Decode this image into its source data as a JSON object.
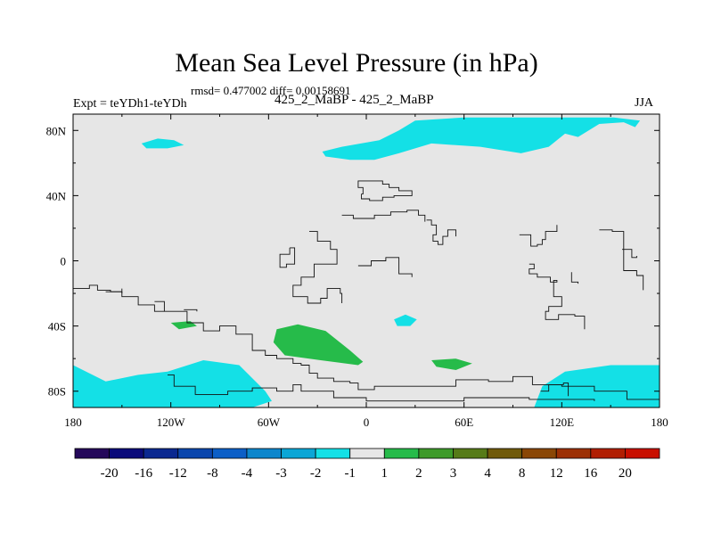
{
  "chart_data": {
    "type": "heatmap",
    "title": "Mean Sea Level Pressure (in hPa)",
    "stats_text": "rmsd= 0.477002 diff= 0.00158691",
    "left_label": "Expt = teYDh1-teYDh",
    "center_label": "425_2_MaBP - 425_2_MaBP",
    "right_label": "JJA",
    "xlim": [
      -180,
      180
    ],
    "ylim": [
      -90,
      90
    ],
    "x_ticks": [
      {
        "value": -180,
        "label": "180"
      },
      {
        "value": -120,
        "label": "120W"
      },
      {
        "value": -60,
        "label": "60W"
      },
      {
        "value": 0,
        "label": "0"
      },
      {
        "value": 60,
        "label": "60E"
      },
      {
        "value": 120,
        "label": "120E"
      },
      {
        "value": 180,
        "label": "180"
      }
    ],
    "y_ticks": [
      {
        "value": 80,
        "label": "80N"
      },
      {
        "value": 40,
        "label": "40N"
      },
      {
        "value": 0,
        "label": "0"
      },
      {
        "value": -40,
        "label": "40S"
      },
      {
        "value": -80,
        "label": "80S"
      }
    ],
    "background_color": "#e6e6e6",
    "colorbar": {
      "colors": [
        "#24085a",
        "#0a0a7a",
        "#0a2890",
        "#0b46ad",
        "#0c5fc7",
        "#0d86cc",
        "#0ca6d6",
        "#14e0e6",
        "#e6e6e6",
        "#26bb4a",
        "#3e9a2a",
        "#567b18",
        "#705a0a",
        "#8a4706",
        "#9c3004",
        "#b01e02",
        "#c80f00"
      ],
      "labels": [
        "-20",
        "-16",
        "-12",
        "-8",
        "-4",
        "-3",
        "-2",
        "-1",
        "1",
        "2",
        "3",
        "4",
        "8",
        "12",
        "16",
        "20"
      ]
    },
    "regions": [
      {
        "name": "arctic-negative-anomaly",
        "level": "-2 to -1",
        "color": "#14e0e6",
        "lonlat": [
          [
            -25,
            64
          ],
          [
            -10,
            62
          ],
          [
            5,
            62
          ],
          [
            20,
            66
          ],
          [
            40,
            72
          ],
          [
            70,
            70
          ],
          [
            95,
            66
          ],
          [
            112,
            70
          ],
          [
            122,
            78
          ],
          [
            130,
            76
          ],
          [
            143,
            84
          ],
          [
            158,
            85
          ],
          [
            165,
            82
          ],
          [
            168,
            86
          ],
          [
            152,
            88
          ],
          [
            112,
            88
          ],
          [
            60,
            88
          ],
          [
            30,
            86
          ],
          [
            20,
            80
          ],
          [
            8,
            74
          ],
          [
            -15,
            70
          ],
          [
            -27,
            67
          ]
        ]
      },
      {
        "name": "north-pacific-negative-anomaly",
        "level": "-2 to -1",
        "color": "#14e0e6",
        "lonlat": [
          [
            -138,
            72
          ],
          [
            -128,
            75
          ],
          [
            -118,
            74
          ],
          [
            -112,
            71
          ],
          [
            -122,
            69
          ],
          [
            -135,
            69
          ]
        ]
      },
      {
        "name": "antarctic-negative-anomaly-west",
        "level": "-2 to -1",
        "color": "#14e0e6",
        "lonlat": [
          [
            -180,
            -64
          ],
          [
            -160,
            -74
          ],
          [
            -140,
            -70
          ],
          [
            -122,
            -68
          ],
          [
            -100,
            -61
          ],
          [
            -78,
            -64
          ],
          [
            -68,
            -74
          ],
          [
            -62,
            -80
          ],
          [
            -58,
            -86
          ],
          [
            -70,
            -90
          ],
          [
            -180,
            -90
          ]
        ]
      },
      {
        "name": "antarctic-negative-anomaly-east",
        "level": "-2 to -1",
        "color": "#14e0e6",
        "lonlat": [
          [
            103,
            -90
          ],
          [
            108,
            -77
          ],
          [
            122,
            -68
          ],
          [
            150,
            -64
          ],
          [
            180,
            -64
          ],
          [
            180,
            -90
          ]
        ]
      },
      {
        "name": "south-atlantic-negative-anomaly",
        "level": "-2 to -1",
        "color": "#14e0e6",
        "lonlat": [
          [
            17,
            -36
          ],
          [
            24,
            -33
          ],
          [
            31,
            -36
          ],
          [
            27,
            -40
          ],
          [
            19,
            -40
          ]
        ]
      },
      {
        "name": "south-atlantic-positive-anomaly",
        "level": "1 to 2",
        "color": "#26bb4a",
        "lonlat": [
          [
            -55,
            -42
          ],
          [
            -42,
            -39
          ],
          [
            -25,
            -43
          ],
          [
            -10,
            -55
          ],
          [
            -2,
            -62
          ],
          [
            -5,
            -64
          ],
          [
            -28,
            -61
          ],
          [
            -50,
            -58
          ],
          [
            -57,
            -50
          ]
        ]
      },
      {
        "name": "south-pacific-positive-anomaly",
        "level": "1 to 2",
        "color": "#26bb4a",
        "lonlat": [
          [
            -120,
            -38
          ],
          [
            -108,
            -37
          ],
          [
            -104,
            -40
          ],
          [
            -115,
            -42
          ]
        ]
      },
      {
        "name": "indian-ocean-positive-anomaly",
        "level": "1 to 2",
        "color": "#26bb4a",
        "lonlat": [
          [
            40,
            -61
          ],
          [
            55,
            -60
          ],
          [
            65,
            -63
          ],
          [
            55,
            -67
          ],
          [
            43,
            -65
          ]
        ]
      }
    ],
    "coastlines": [
      [
        [
          -180,
          -17
        ],
        [
          -170,
          -15
        ],
        [
          -165,
          -18
        ],
        [
          -157,
          -19
        ],
        [
          -150,
          -22
        ],
        [
          -140,
          -27
        ],
        [
          -130,
          -31
        ],
        [
          -110,
          -38
        ],
        [
          -100,
          -43
        ],
        [
          -90,
          -40
        ],
        [
          -80,
          -45
        ],
        [
          -70,
          -55
        ],
        [
          -62,
          -58
        ],
        [
          -55,
          -60
        ],
        [
          -45,
          -63
        ],
        [
          -40,
          -64
        ],
        [
          -35,
          -69
        ],
        [
          -30,
          -72
        ],
        [
          -20,
          -74
        ],
        [
          -10,
          -75
        ],
        [
          -5,
          -79
        ],
        [
          5,
          -77
        ],
        [
          20,
          -77
        ],
        [
          40,
          -77
        ],
        [
          55,
          -73
        ],
        [
          75,
          -74
        ],
        [
          90,
          -71
        ],
        [
          102,
          -76
        ],
        [
          120,
          -77
        ],
        [
          140,
          -80
        ],
        [
          160,
          -85
        ],
        [
          180,
          -88
        ]
      ],
      [
        [
          -122,
          -70
        ],
        [
          -118,
          -77
        ],
        [
          -105,
          -82
        ],
        [
          -85,
          -80
        ],
        [
          -70,
          -78
        ],
        [
          -55,
          -80
        ],
        [
          -45,
          -76
        ],
        [
          -40,
          -80
        ],
        [
          -20,
          -84
        ],
        [
          0,
          -86
        ],
        [
          30,
          -86
        ],
        [
          60,
          -84
        ],
        [
          100,
          -85
        ],
        [
          140,
          -86
        ]
      ],
      [
        [
          -160,
          -19
        ],
        [
          -150,
          -17
        ],
        [
          -150,
          -20
        ]
      ],
      [
        [
          -130,
          -25
        ],
        [
          -124,
          -28
        ],
        [
          -124,
          -31
        ]
      ],
      [
        [
          -112,
          -30
        ],
        [
          -104,
          -31
        ]
      ],
      [
        [
          -3,
          41
        ],
        [
          -2,
          45
        ],
        [
          -5,
          49
        ],
        [
          10,
          47
        ],
        [
          14,
          45
        ],
        [
          20,
          43
        ],
        [
          28,
          43
        ],
        [
          28,
          40
        ],
        [
          17,
          39
        ],
        [
          10,
          37
        ],
        [
          2,
          38
        ],
        [
          -3,
          41
        ]
      ],
      [
        [
          -15,
          28
        ],
        [
          -8,
          26
        ],
        [
          5,
          28
        ],
        [
          15,
          30
        ],
        [
          25,
          31
        ],
        [
          32,
          28
        ],
        [
          36,
          24
        ]
      ],
      [
        [
          -47,
          8
        ],
        [
          -44,
          4
        ],
        [
          -44,
          -2
        ],
        [
          -49,
          -4
        ],
        [
          -53,
          -2
        ],
        [
          -53,
          4
        ],
        [
          -47,
          8
        ]
      ],
      [
        [
          -35,
          18
        ],
        [
          -30,
          12
        ],
        [
          -22,
          7
        ],
        [
          -18,
          -2
        ],
        [
          -32,
          -10
        ],
        [
          -40,
          -15
        ],
        [
          -45,
          -22
        ],
        [
          -36,
          -26
        ],
        [
          -28,
          -23
        ],
        [
          -24,
          -17
        ],
        [
          -16,
          -20
        ],
        [
          -15,
          -26
        ]
      ],
      [
        [
          -5,
          -3
        ],
        [
          3,
          0
        ],
        [
          12,
          2
        ],
        [
          20,
          -8
        ],
        [
          28,
          -10
        ]
      ],
      [
        [
          37,
          25
        ],
        [
          40,
          22
        ],
        [
          43,
          16
        ],
        [
          41,
          12
        ],
        [
          44,
          10
        ],
        [
          47,
          15
        ],
        [
          50,
          19
        ],
        [
          53,
          19
        ],
        [
          55,
          15
        ]
      ],
      [
        [
          94,
          16
        ],
        [
          101,
          16
        ],
        [
          101,
          9
        ],
        [
          105,
          10
        ],
        [
          108,
          13
        ],
        [
          110,
          18
        ],
        [
          117,
          22
        ]
      ],
      [
        [
          100,
          -2
        ],
        [
          103,
          -5
        ],
        [
          100,
          -8
        ],
        [
          105,
          -10
        ],
        [
          113,
          -13
        ],
        [
          117,
          -12
        ],
        [
          115,
          -22
        ],
        [
          120,
          -28
        ],
        [
          112,
          -31
        ],
        [
          110,
          -36
        ],
        [
          118,
          -33
        ],
        [
          128,
          -34
        ],
        [
          134,
          -42
        ]
      ],
      [
        [
          126,
          -7
        ],
        [
          126,
          -13
        ],
        [
          130,
          -14
        ]
      ],
      [
        [
          143,
          19
        ],
        [
          151,
          18
        ],
        [
          158,
          4
        ],
        [
          158,
          -6
        ],
        [
          166,
          -9
        ],
        [
          170,
          -18
        ]
      ],
      [
        [
          157,
          7
        ],
        [
          163,
          2
        ],
        [
          166,
          3
        ]
      ],
      [
        [
          107,
          -80
        ],
        [
          112,
          -76
        ],
        [
          121,
          -75
        ],
        [
          124,
          -83
        ]
      ]
    ]
  }
}
